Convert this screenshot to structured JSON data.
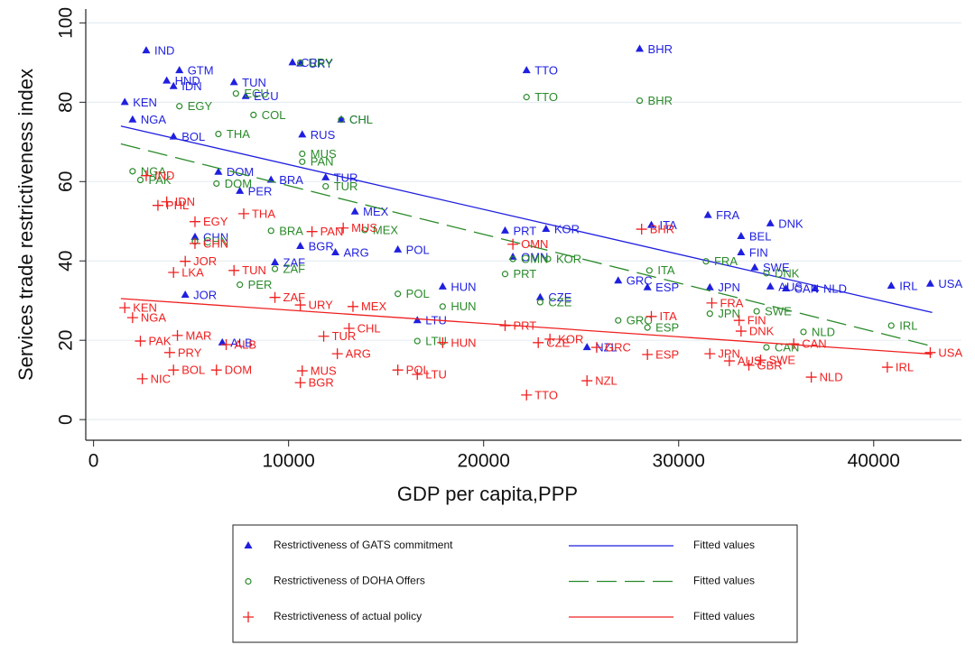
{
  "chart_data": {
    "type": "scatter",
    "xlabel": "GDP per capita,PPP",
    "ylabel": "Services trade restrictiveness index",
    "xlim": [
      -400,
      44500
    ],
    "ylim": [
      -5.2,
      103.5
    ],
    "xticks": [
      0,
      10000,
      20000,
      30000,
      40000
    ],
    "yticks": [
      0,
      20,
      40,
      60,
      80,
      100
    ],
    "grid": true,
    "series": [
      {
        "name": "Restrictiveness of GATS commitment",
        "type": "scatter",
        "marker": "triangle",
        "color": "#1f1fe0",
        "labels": [
          "IND",
          "GTM",
          "BHR",
          "TTO",
          "CRI",
          "URY",
          "TUN",
          "HND",
          "IDN",
          "ECU",
          "KEN",
          "NGA",
          "CHL",
          "BOL",
          "RUS",
          "DOM",
          "BRA",
          "TUR",
          "PER",
          "MEX",
          "PRT",
          "KOR",
          "ITA",
          "FRA",
          "DNK",
          "BEL",
          "FIN",
          "CHN",
          "ZAF",
          "BGR",
          "ARG",
          "POL",
          "OMN",
          "HUN",
          "SWE",
          "GRC",
          "ESP",
          "JPN",
          "CZE",
          "JOR",
          "LTU",
          "NZL",
          "ALB",
          "IRL",
          "USA",
          "NLD",
          "CAN",
          "AUS"
        ],
        "x": [
          2700,
          4400,
          28000,
          22200,
          10200,
          10600,
          7200,
          3750,
          4100,
          7800,
          1600,
          2000,
          12700,
          4100,
          10700,
          6400,
          9100,
          11900,
          7500,
          13400,
          21100,
          23200,
          28600,
          31500,
          34700,
          33200,
          33200,
          5200,
          9300,
          10600,
          12400,
          15600,
          21500,
          17900,
          33900,
          26900,
          28400,
          31600,
          22900,
          4700,
          16600,
          25300,
          6600,
          40900,
          42900,
          37000,
          35500,
          34700
        ],
        "values": [
          93,
          88,
          93.4,
          88,
          90,
          89.7,
          85,
          85.4,
          84,
          81.5,
          80,
          75.6,
          75.6,
          71.3,
          71.8,
          62.4,
          60.4,
          61,
          57.6,
          52.4,
          47.6,
          48,
          49,
          51.5,
          49.4,
          46.2,
          42.1,
          46,
          39.6,
          43.7,
          42.1,
          42.8,
          41,
          33.5,
          38.3,
          35,
          33.3,
          33.3,
          30.8,
          31.4,
          25,
          18.2,
          19.4,
          33.7,
          34.2,
          33,
          33,
          33.5
        ]
      },
      {
        "name": "Fitted values",
        "type": "line",
        "color": "#1f1fe0",
        "dash": false,
        "x": [
          1400,
          43000
        ],
        "values": [
          74,
          27
        ]
      },
      {
        "name": "Restrictiveness of DOHA Offers",
        "type": "scatter",
        "marker": "circle",
        "color": "#2a8a2a",
        "labels": [
          "TTO",
          "BHR",
          "URY",
          "EGY",
          "ECU",
          "COL",
          "CHL",
          "THA",
          "MUS",
          "PAN",
          "NGA",
          "PAK",
          "DOM",
          "TUR",
          "BRA",
          "MEX",
          "OMN",
          "KOR",
          "ITA",
          "FRA",
          "DNK",
          "CHN",
          "ZAF",
          "PRT",
          "PER",
          "POL",
          "HUN",
          "CZE",
          "GRC",
          "ESP",
          "JPN",
          "SWE",
          "NLD",
          "IRL",
          "LTU",
          "CAN"
        ],
        "x": [
          22200,
          28000,
          10600,
          4400,
          7300,
          8200,
          12700,
          6400,
          10700,
          10700,
          2000,
          2400,
          6300,
          11900,
          9100,
          13900,
          21500,
          23300,
          28500,
          31400,
          34500,
          5200,
          9300,
          21100,
          7500,
          15600,
          17900,
          22900,
          26900,
          28400,
          31600,
          34000,
          36400,
          40900,
          16600,
          34500
        ],
        "values": [
          81.3,
          80.4,
          90,
          79,
          82.2,
          76.8,
          75.6,
          72,
          67,
          65,
          62.6,
          60.4,
          59.5,
          58.8,
          47.6,
          47.8,
          40.5,
          40.5,
          37.6,
          39.9,
          36.9,
          44.9,
          38,
          36.7,
          34,
          31.7,
          28.5,
          29.6,
          25,
          23.2,
          26.7,
          27.3,
          22.1,
          23.7,
          19.8,
          18.2
        ]
      },
      {
        "name": "Fitted values",
        "type": "line",
        "color": "#2a8a2a",
        "dash": true,
        "x": [
          1400,
          43000
        ],
        "values": [
          69.5,
          18.5
        ]
      },
      {
        "name": "Restrictiveness of actual policy",
        "type": "scatter",
        "marker": "plus",
        "color": "#f02020",
        "labels": [
          "IND",
          "IDN",
          "PHL",
          "EGY",
          "THA",
          "CHN",
          "PAN",
          "MUS",
          "OMN",
          "BHR",
          "JOR",
          "LKA",
          "TUN",
          "ZAF",
          "URY",
          "MEX",
          "CHL",
          "TUR",
          "ARG",
          "KEN",
          "NGA",
          "MAR",
          "PAK",
          "PRY",
          "BOL",
          "NIC",
          "DOM",
          "ALB",
          "MUS",
          "BGR",
          "POL",
          "LTU",
          "HUN",
          "PRT",
          "TTO",
          "CZE",
          "KOR",
          "NZL",
          "GRC",
          "ESP",
          "ITA",
          "FRA",
          "JPN",
          "AUS",
          "DNK",
          "SWE",
          "GBR",
          "CAN",
          "NLD",
          "IRL",
          "USA",
          "FIN"
        ],
        "x": [
          2700,
          3750,
          3300,
          5200,
          7700,
          5200,
          11200,
          12800,
          21500,
          28100,
          4700,
          4100,
          7200,
          9300,
          10600,
          13300,
          13100,
          11800,
          12500,
          1600,
          2000,
          4300,
          2400,
          3900,
          4100,
          2500,
          6300,
          6800,
          10700,
          10600,
          15600,
          16600,
          17900,
          21100,
          22200,
          22800,
          23400,
          25300,
          25800,
          28400,
          28600,
          31700,
          31600,
          32600,
          33200,
          34200,
          33600,
          35900,
          36800,
          40700,
          42900,
          33100
        ],
        "values": [
          61.5,
          54.9,
          54,
          49.9,
          51.9,
          44.4,
          47.4,
          48.3,
          44.2,
          48,
          39.9,
          37.1,
          37.6,
          30.8,
          28.9,
          28.5,
          23,
          21,
          16.6,
          28.2,
          25.7,
          21.2,
          19.8,
          16.9,
          12.5,
          10.3,
          12.5,
          18.9,
          12.3,
          9.3,
          12.5,
          11.4,
          19.4,
          23.7,
          6.2,
          19.4,
          20.3,
          9.8,
          18.2,
          16.4,
          26,
          29.4,
          16.6,
          14.8,
          22.3,
          15,
          13.7,
          19.1,
          10.7,
          13.2,
          16.9,
          25
        ]
      },
      {
        "name": "Fitted values",
        "type": "line",
        "color": "#f02020",
        "dash": false,
        "x": [
          1400,
          43000
        ],
        "values": [
          30.5,
          16.5
        ]
      }
    ]
  }
}
